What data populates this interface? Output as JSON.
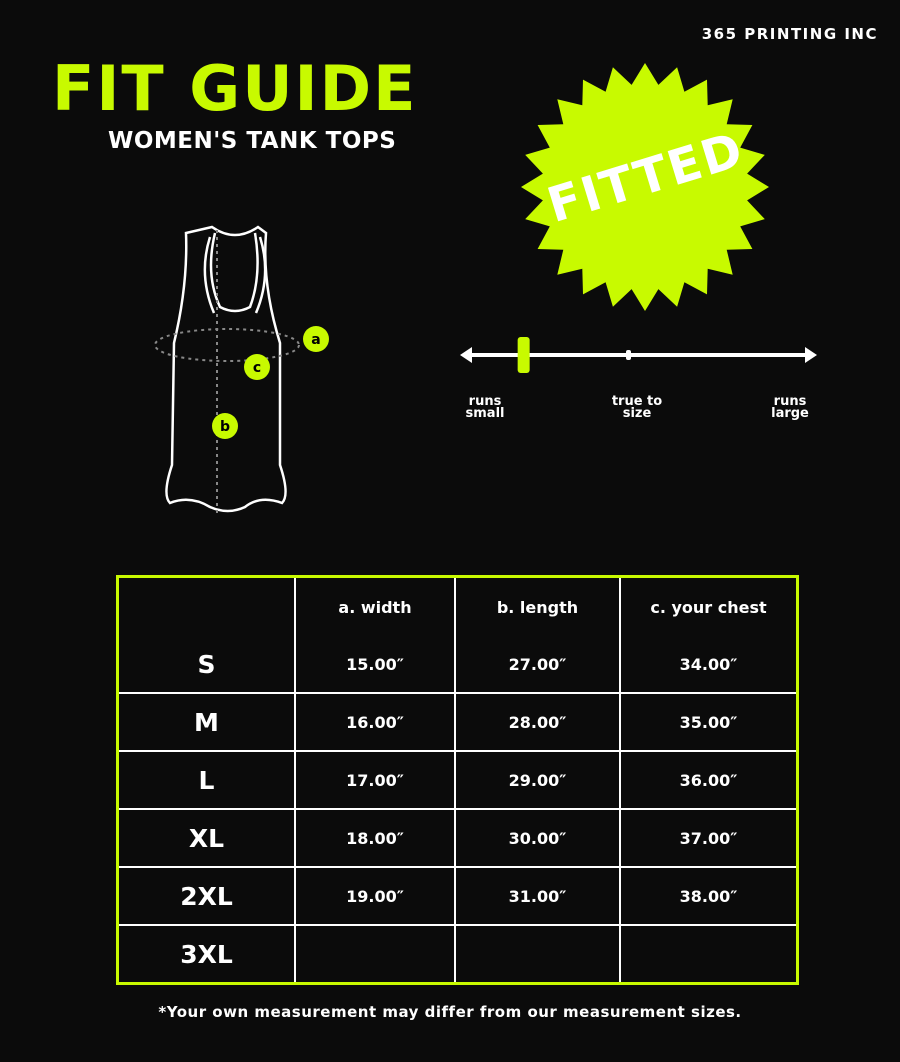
{
  "brand": "365 PRINTING INC",
  "header": {
    "title": "FIT GUIDE",
    "subtitle": "WOMEN'S TANK TOPS"
  },
  "badge": {
    "label": "FITTED",
    "color": "#c8fa00"
  },
  "diagram": {
    "markers": [
      "a",
      "b",
      "c"
    ]
  },
  "fit_scale": {
    "labels": {
      "small": "runs small",
      "true": "true to size",
      "large": "runs large"
    },
    "small_l1": "runs",
    "small_l2": "small",
    "true_l1": "true to",
    "true_l2": "size",
    "large_l1": "runs",
    "large_l2": "large",
    "fit_position": 0.17
  },
  "table": {
    "headers": [
      "",
      "a. width",
      "b. length",
      "c. your chest"
    ],
    "rows": [
      [
        "S",
        "15.00″",
        "27.00″",
        "34.00″"
      ],
      [
        "M",
        "16.00″",
        "28.00″",
        "35.00″"
      ],
      [
        "L",
        "17.00″",
        "29.00″",
        "36.00″"
      ],
      [
        "XL",
        "18.00″",
        "30.00″",
        "37.00″"
      ],
      [
        "2XL",
        "19.00″",
        "31.00″",
        "38.00″"
      ],
      [
        "3XL",
        "",
        "",
        ""
      ]
    ]
  },
  "footnote": "*Your own measurement may differ from our measurement sizes.",
  "accent_color": "#c8fa00"
}
